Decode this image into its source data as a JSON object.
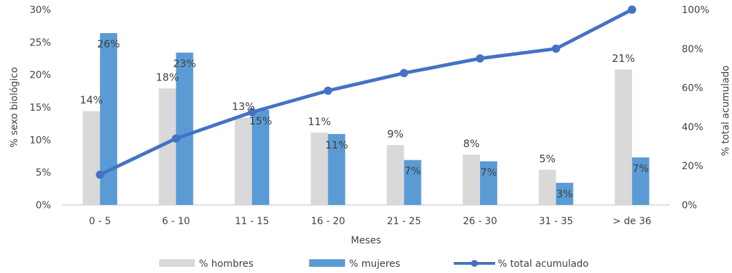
{
  "chart_data": {
    "type": "bar",
    "categories": [
      "0 - 5",
      "6 - 10",
      "11 - 15",
      "16 - 20",
      "21 - 25",
      "26 - 30",
      "31 - 35",
      "> de 36"
    ],
    "xlabel": "Meses",
    "ylabel": "% sexo biológico",
    "y2label": "% total acumulado",
    "ylim": [
      0,
      30
    ],
    "y2lim": [
      0,
      100
    ],
    "yticks": [
      "0%",
      "5%",
      "10%",
      "15%",
      "20%",
      "25%",
      "30%"
    ],
    "y2ticks": [
      "0%",
      "20%",
      "40%",
      "60%",
      "80%",
      "100%"
    ],
    "legend_position": "bottom",
    "grid": false,
    "series": [
      {
        "name": "% hombres",
        "type": "bar",
        "axis": "left",
        "color": "#d9d9d9",
        "values": [
          14.4,
          17.9,
          13.4,
          11.1,
          9.2,
          7.7,
          5.4,
          20.8
        ],
        "labels": [
          "14%",
          "18%",
          "13%",
          "11%",
          "9%",
          "8%",
          "5%",
          "21%"
        ]
      },
      {
        "name": "% mujeres",
        "type": "bar",
        "axis": "left",
        "color": "#5b9bd5",
        "values": [
          26.4,
          23.4,
          14.6,
          10.9,
          6.9,
          6.7,
          3.4,
          7.3
        ],
        "labels": [
          "26%",
          "23%",
          "15%",
          "11%",
          "7%",
          "7%",
          "3%",
          "7%"
        ]
      },
      {
        "name": "% total acumulado",
        "type": "line",
        "axis": "right",
        "color": "#4472c4",
        "values": [
          15.5,
          34,
          47.5,
          58.5,
          67.5,
          75,
          80,
          100
        ]
      }
    ]
  }
}
